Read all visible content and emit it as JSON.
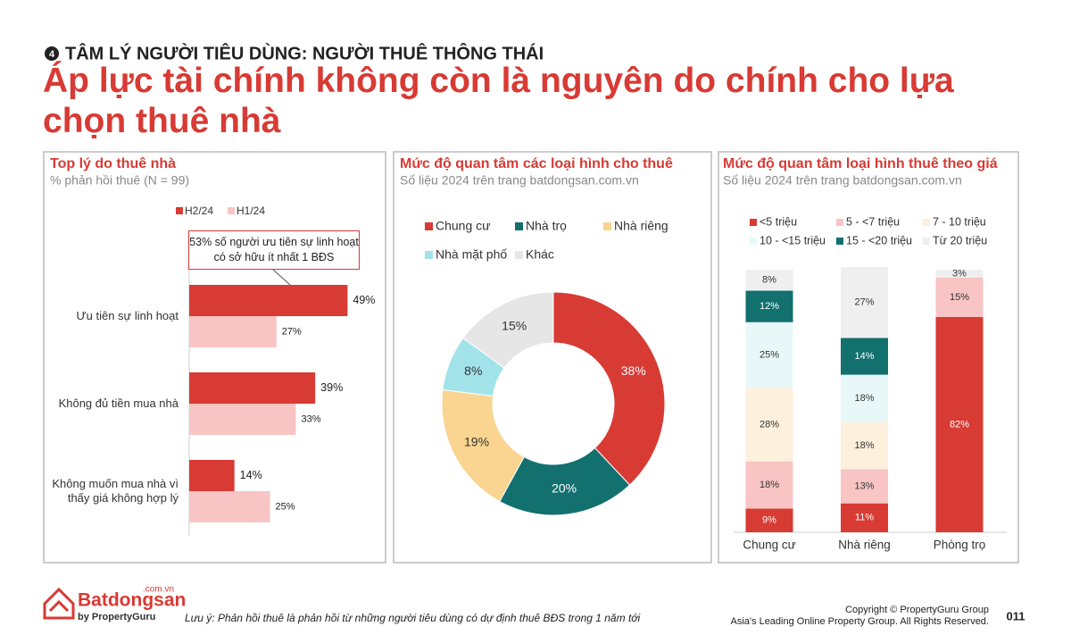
{
  "header": {
    "section_number": "4",
    "section_label": "TÂM LÝ NGƯỜI TIÊU DÙNG: NGƯỜI THUÊ THÔNG THÁI",
    "title": "Áp lực tài chính không còn là nguyên do chính cho lựa chọn thuê nhà"
  },
  "chart_data": [
    {
      "type": "hbar",
      "title": "Top lý do thuê nhà",
      "subtitle": "% phản hồi thuê (N = 99)",
      "categories": [
        "Ưu tiên sự linh hoạt",
        "Không đủ tiền mua nhà",
        "Không muốn mua nhà vì thấy giá không hợp lý"
      ],
      "series": [
        {
          "name": "H2/24",
          "color": "#d83a34",
          "values": [
            49,
            39,
            14
          ],
          "value_labels": [
            "49%",
            "39%",
            "14%"
          ]
        },
        {
          "name": "H1/24",
          "color": "#f8c4c4",
          "values": [
            27,
            33,
            25
          ],
          "value_labels": [
            "27%",
            "33%",
            "25%"
          ]
        }
      ],
      "annotation": "53% số người ưu tiên sự linh hoạt có sở hữu ít nhất 1 BĐS"
    },
    {
      "type": "donut",
      "title": "Mức độ quan tâm các loại hình cho thuê",
      "subtitle": "Số liệu 2024 trên trang batdongsan.com.vn",
      "categories": [
        "Chung cư",
        "Nhà trọ",
        "Nhà riêng",
        "Nhà mặt phố",
        "Khác"
      ],
      "values": [
        38,
        20,
        19,
        8,
        15
      ],
      "value_labels": [
        "38%",
        "20%",
        "19%",
        "8%",
        "15%"
      ],
      "colors": [
        "#d83a34",
        "#12706f",
        "#f9d591",
        "#a2e3ea",
        "#e6e6e6"
      ]
    },
    {
      "type": "stacked_bar",
      "title": "Mức độ quan tâm loại hình thuê theo giá",
      "subtitle": "Số liệu 2024 trên trang batdongsan.com.vn",
      "categories": [
        "Chung cư",
        "Nhà riêng",
        "Phòng trọ"
      ],
      "series": [
        {
          "name": "<5 triệu",
          "color": "#d83a34",
          "values": [
            9,
            11,
            82
          ],
          "value_labels": [
            "9%",
            "11%",
            "82%"
          ]
        },
        {
          "name": "5 - <7 triệu",
          "color": "#f8c4c4",
          "values": [
            18,
            13,
            15
          ],
          "value_labels": [
            "18%",
            "13%",
            "15%"
          ]
        },
        {
          "name": "7 - 10 triệu",
          "color": "#fdf0dc",
          "values": [
            28,
            18,
            null
          ],
          "value_labels": [
            "28%",
            "18%",
            null
          ]
        },
        {
          "name": "10 - <15 triệu",
          "color": "#e8f8f9",
          "values": [
            25,
            18,
            null
          ],
          "value_labels": [
            "25%",
            "18%",
            null
          ]
        },
        {
          "name": "15 - <20 triệu",
          "color": "#12706f",
          "values": [
            12,
            14,
            null
          ],
          "value_labels": [
            "12%",
            "14%",
            null
          ]
        },
        {
          "name": "Từ 20 triệu",
          "color": "#efefef",
          "values": [
            8,
            27,
            3
          ],
          "value_labels": [
            "8%",
            "27%",
            "3%"
          ]
        }
      ]
    }
  ],
  "footer": {
    "brand": "Batdongsan",
    "brand_suffix": ".com.vn",
    "brand_by": "by PropertyGuru",
    "note": "Lưu ý: Phản hồi thuê là phản hồi từ những người tiêu dùng có dự định thuê BĐS trong 1 năm tới",
    "copyright": "Copyright © PropertyGuru Group",
    "rights": "Asia's Leading Online Property Group. All Rights Reserved.",
    "page_number": "011"
  }
}
